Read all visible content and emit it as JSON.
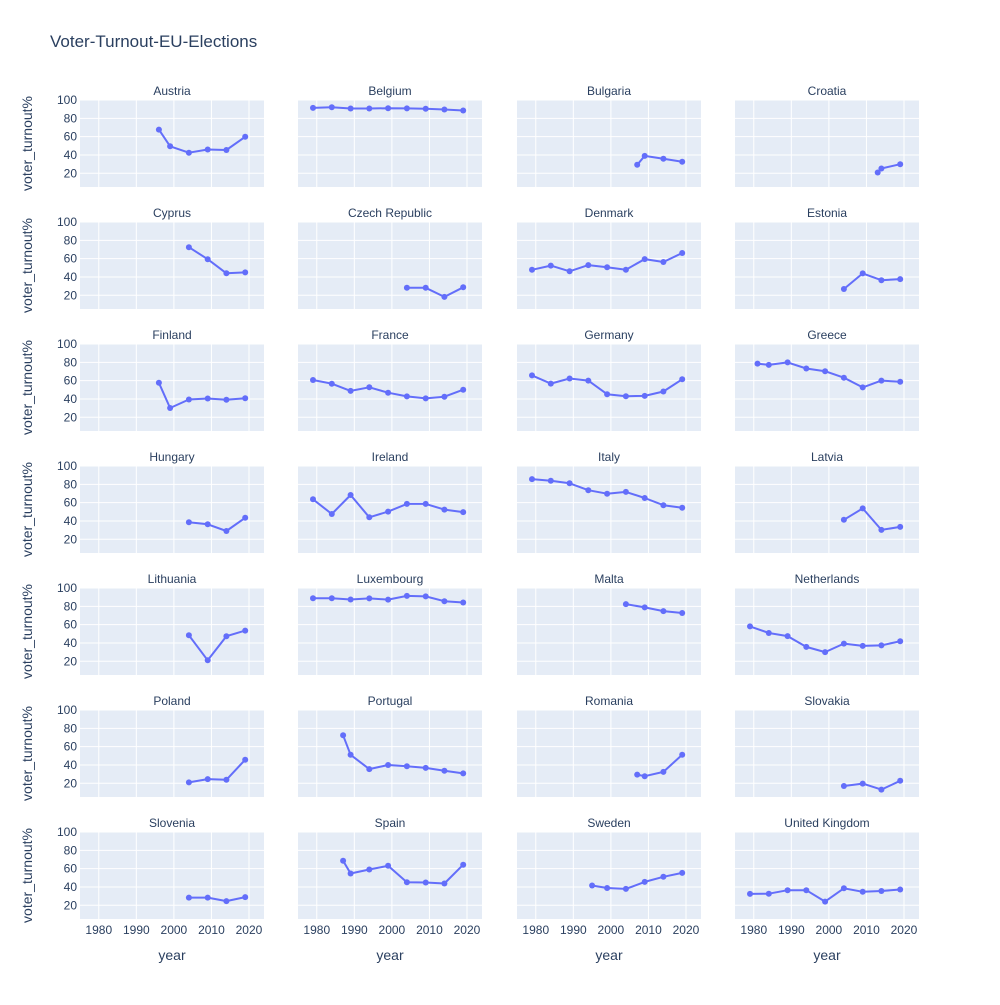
{
  "chart_data": {
    "type": "line",
    "title": "Voter-Turnout-EU-Elections",
    "xlabel": "year",
    "ylabel": "voter_turnout%",
    "xlim": [
      1975,
      2024
    ],
    "ylim": [
      5,
      100
    ],
    "x_ticks": [
      1980,
      1990,
      2000,
      2010,
      2020
    ],
    "y_ticks": [
      20,
      40,
      60,
      80,
      100
    ],
    "grid": true,
    "colors": {
      "line": "#636efa",
      "panel_bg": "#e5ecf6",
      "grid": "#ffffff",
      "text": "#2a3f5f"
    },
    "panels": [
      {
        "name": "Austria",
        "x": [
          1996,
          1999,
          2004,
          2009,
          2014,
          2019
        ],
        "y": [
          67.7,
          49.4,
          42.4,
          46.0,
          45.4,
          59.8
        ]
      },
      {
        "name": "Belgium",
        "x": [
          1979,
          1984,
          1989,
          1994,
          1999,
          2004,
          2009,
          2014,
          2019
        ],
        "y": [
          91.4,
          92.1,
          90.7,
          90.7,
          91.0,
          90.8,
          90.4,
          89.6,
          88.5
        ]
      },
      {
        "name": "Bulgaria",
        "x": [
          2007,
          2009,
          2014,
          2019
        ],
        "y": [
          29.2,
          39.0,
          35.8,
          32.6
        ]
      },
      {
        "name": "Croatia",
        "x": [
          2013,
          2014,
          2019
        ],
        "y": [
          20.8,
          25.2,
          29.9
        ]
      },
      {
        "name": "Cyprus",
        "x": [
          2004,
          2009,
          2014,
          2019
        ],
        "y": [
          72.5,
          59.4,
          44.0,
          45.0
        ]
      },
      {
        "name": "Czech Republic",
        "x": [
          2004,
          2009,
          2014,
          2019
        ],
        "y": [
          28.3,
          28.2,
          18.2,
          28.7
        ]
      },
      {
        "name": "Denmark",
        "x": [
          1979,
          1984,
          1989,
          1994,
          1999,
          2004,
          2009,
          2014,
          2019
        ],
        "y": [
          47.8,
          52.4,
          46.2,
          52.9,
          50.5,
          47.9,
          59.5,
          56.3,
          66.1
        ]
      },
      {
        "name": "Estonia",
        "x": [
          2004,
          2009,
          2014,
          2019
        ],
        "y": [
          26.8,
          43.9,
          36.5,
          37.6
        ]
      },
      {
        "name": "Finland",
        "x": [
          1996,
          1999,
          2004,
          2009,
          2014,
          2019
        ],
        "y": [
          57.6,
          30.1,
          39.4,
          40.5,
          39.1,
          40.8
        ]
      },
      {
        "name": "France",
        "x": [
          1979,
          1984,
          1989,
          1994,
          1999,
          2004,
          2009,
          2014,
          2019
        ],
        "y": [
          60.7,
          56.7,
          48.8,
          52.7,
          46.8,
          42.8,
          40.6,
          42.4,
          50.1
        ]
      },
      {
        "name": "Germany",
        "x": [
          1979,
          1984,
          1989,
          1994,
          1999,
          2004,
          2009,
          2014,
          2019
        ],
        "y": [
          65.7,
          56.8,
          62.3,
          60.0,
          45.2,
          43.0,
          43.3,
          48.1,
          61.4
        ]
      },
      {
        "name": "Greece",
        "x": [
          1981,
          1984,
          1989,
          1994,
          1999,
          2004,
          2009,
          2014,
          2019
        ],
        "y": [
          78.6,
          77.2,
          79.9,
          73.2,
          70.3,
          63.2,
          52.6,
          60.0,
          58.7
        ]
      },
      {
        "name": "Hungary",
        "x": [
          2004,
          2009,
          2014,
          2019
        ],
        "y": [
          38.5,
          36.3,
          29.0,
          43.4
        ]
      },
      {
        "name": "Ireland",
        "x": [
          1979,
          1984,
          1989,
          1994,
          1999,
          2004,
          2009,
          2014,
          2019
        ],
        "y": [
          63.6,
          47.6,
          68.3,
          44.0,
          50.2,
          58.6,
          58.6,
          52.4,
          49.7
        ]
      },
      {
        "name": "Italy",
        "x": [
          1979,
          1984,
          1989,
          1994,
          1999,
          2004,
          2009,
          2014,
          2019
        ],
        "y": [
          85.7,
          83.9,
          81.1,
          73.6,
          69.8,
          71.7,
          65.1,
          57.2,
          54.5
        ]
      },
      {
        "name": "Latvia",
        "x": [
          2004,
          2009,
          2014,
          2019
        ],
        "y": [
          41.3,
          53.7,
          30.2,
          33.5
        ]
      },
      {
        "name": "Lithuania",
        "x": [
          2004,
          2009,
          2014,
          2019
        ],
        "y": [
          48.4,
          21.0,
          47.4,
          53.5
        ]
      },
      {
        "name": "Luxembourg",
        "x": [
          1979,
          1984,
          1989,
          1994,
          1999,
          2004,
          2009,
          2014,
          2019
        ],
        "y": [
          88.9,
          88.8,
          87.4,
          88.6,
          87.3,
          91.4,
          90.8,
          85.6,
          84.2
        ]
      },
      {
        "name": "Malta",
        "x": [
          2004,
          2009,
          2014,
          2019
        ],
        "y": [
          82.4,
          78.8,
          74.8,
          72.7
        ]
      },
      {
        "name": "Netherlands",
        "x": [
          1979,
          1984,
          1989,
          1994,
          1999,
          2004,
          2009,
          2014,
          2019
        ],
        "y": [
          58.1,
          50.9,
          47.5,
          35.7,
          30.0,
          39.3,
          36.8,
          37.3,
          41.9
        ]
      },
      {
        "name": "Poland",
        "x": [
          2004,
          2009,
          2014,
          2019
        ],
        "y": [
          20.9,
          24.5,
          23.8,
          45.7
        ]
      },
      {
        "name": "Portugal",
        "x": [
          1987,
          1989,
          1994,
          1999,
          2004,
          2009,
          2014,
          2019
        ],
        "y": [
          72.4,
          51.1,
          35.5,
          39.9,
          38.6,
          36.8,
          33.7,
          30.8
        ]
      },
      {
        "name": "Romania",
        "x": [
          2007,
          2009,
          2014,
          2019
        ],
        "y": [
          29.5,
          27.7,
          32.4,
          51.2
        ]
      },
      {
        "name": "Slovakia",
        "x": [
          2004,
          2009,
          2014,
          2019
        ],
        "y": [
          17.0,
          19.6,
          13.1,
          22.7
        ]
      },
      {
        "name": "Slovenia",
        "x": [
          2004,
          2009,
          2014,
          2019
        ],
        "y": [
          28.4,
          28.4,
          24.6,
          28.9
        ]
      },
      {
        "name": "Spain",
        "x": [
          1987,
          1989,
          1994,
          1999,
          2004,
          2009,
          2014,
          2019
        ],
        "y": [
          68.5,
          54.7,
          59.1,
          63.1,
          45.1,
          44.9,
          43.8,
          64.3
        ]
      },
      {
        "name": "Sweden",
        "x": [
          1995,
          1999,
          2004,
          2009,
          2014,
          2019
        ],
        "y": [
          41.6,
          38.8,
          37.9,
          45.5,
          51.1,
          55.3
        ]
      },
      {
        "name": "United Kingdom",
        "x": [
          1979,
          1984,
          1989,
          1994,
          1999,
          2004,
          2009,
          2014,
          2019
        ],
        "y": [
          32.4,
          32.6,
          36.4,
          36.4,
          24.0,
          38.5,
          34.7,
          35.6,
          37.2
        ]
      }
    ]
  }
}
